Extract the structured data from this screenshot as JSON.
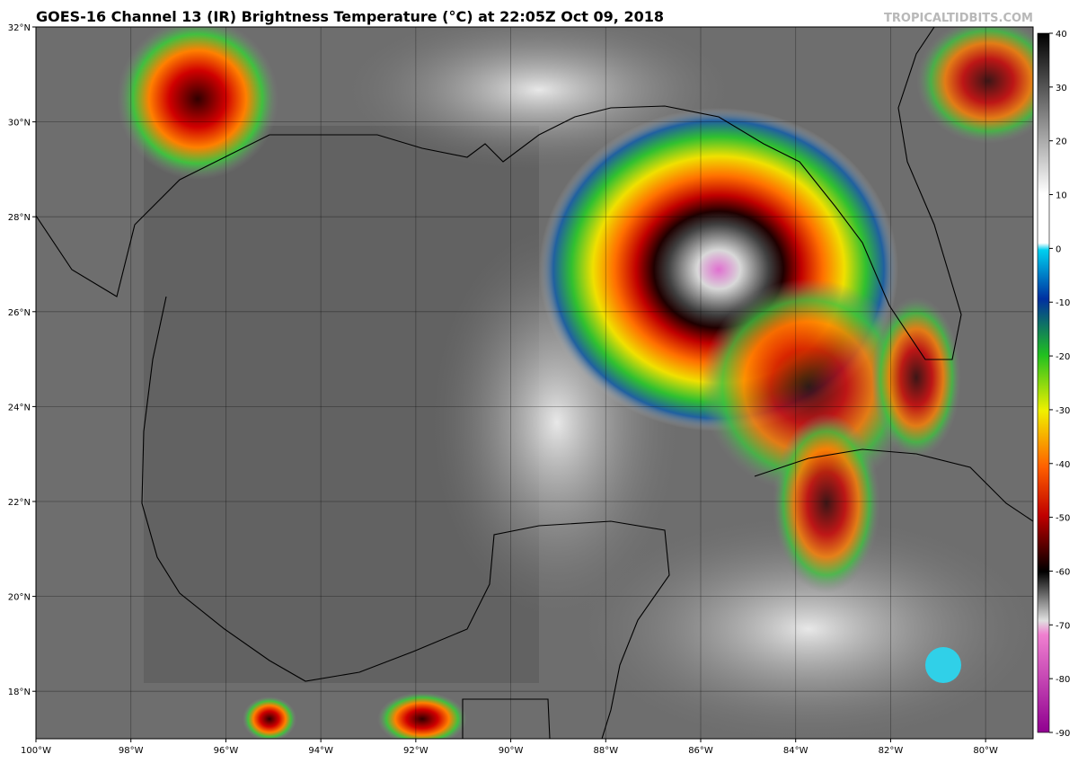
{
  "map": {
    "title": "GOES-16 Channel 13 (IR) Brightness Temperature (°C) at 22:05Z Oct 09, 2018",
    "credit": "TROPICALTIDBITS.COM",
    "lon_range": [
      -100,
      -79
    ],
    "lat_range": [
      17,
      32
    ],
    "lat_ticks": [
      {
        "value": 32,
        "label": "32°N"
      },
      {
        "value": 30,
        "label": "30°N"
      },
      {
        "value": 28,
        "label": "28°N"
      },
      {
        "value": 26,
        "label": "26°N"
      },
      {
        "value": 24,
        "label": "24°N"
      },
      {
        "value": 22,
        "label": "22°N"
      },
      {
        "value": 20,
        "label": "20°N"
      },
      {
        "value": 18,
        "label": "18°N"
      }
    ],
    "lon_ticks": [
      {
        "value": -100,
        "label": "100°W"
      },
      {
        "value": -98,
        "label": "98°W"
      },
      {
        "value": -96,
        "label": "96°W"
      },
      {
        "value": -94,
        "label": "94°W"
      },
      {
        "value": -92,
        "label": "92°W"
      },
      {
        "value": -90,
        "label": "90°W"
      },
      {
        "value": -88,
        "label": "88°W"
      },
      {
        "value": -86,
        "label": "86°W"
      },
      {
        "value": -84,
        "label": "84°W"
      },
      {
        "value": -82,
        "label": "82°W"
      },
      {
        "value": -80,
        "label": "80°W"
      }
    ],
    "colorbar": {
      "range": [
        -90,
        40
      ],
      "ticks": [
        40,
        30,
        20,
        10,
        0,
        -10,
        -20,
        -30,
        -40,
        -50,
        -60,
        -70,
        -80,
        -90
      ]
    }
  }
}
